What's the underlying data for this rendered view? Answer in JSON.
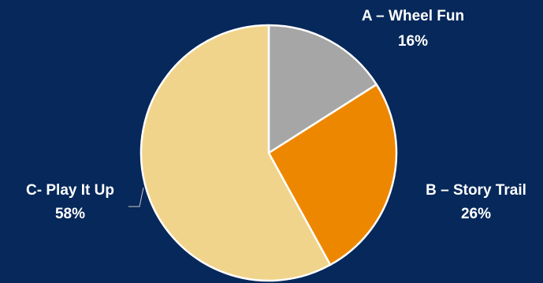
{
  "chart_data": {
    "type": "pie",
    "slices": [
      {
        "name": "A – Wheel Fun",
        "value": 16,
        "value_label": "16%",
        "color": "#a6a6a6"
      },
      {
        "name": "B – Story Trail",
        "value": 26,
        "value_label": "26%",
        "color": "#ee8700"
      },
      {
        "name": "C- Play It Up",
        "value": 58,
        "value_label": "58%",
        "color": "#f0d48b"
      }
    ],
    "start": "12 o'clock",
    "direction": "clockwise",
    "background_color": "#06285a",
    "label_color": "#ffffff"
  }
}
